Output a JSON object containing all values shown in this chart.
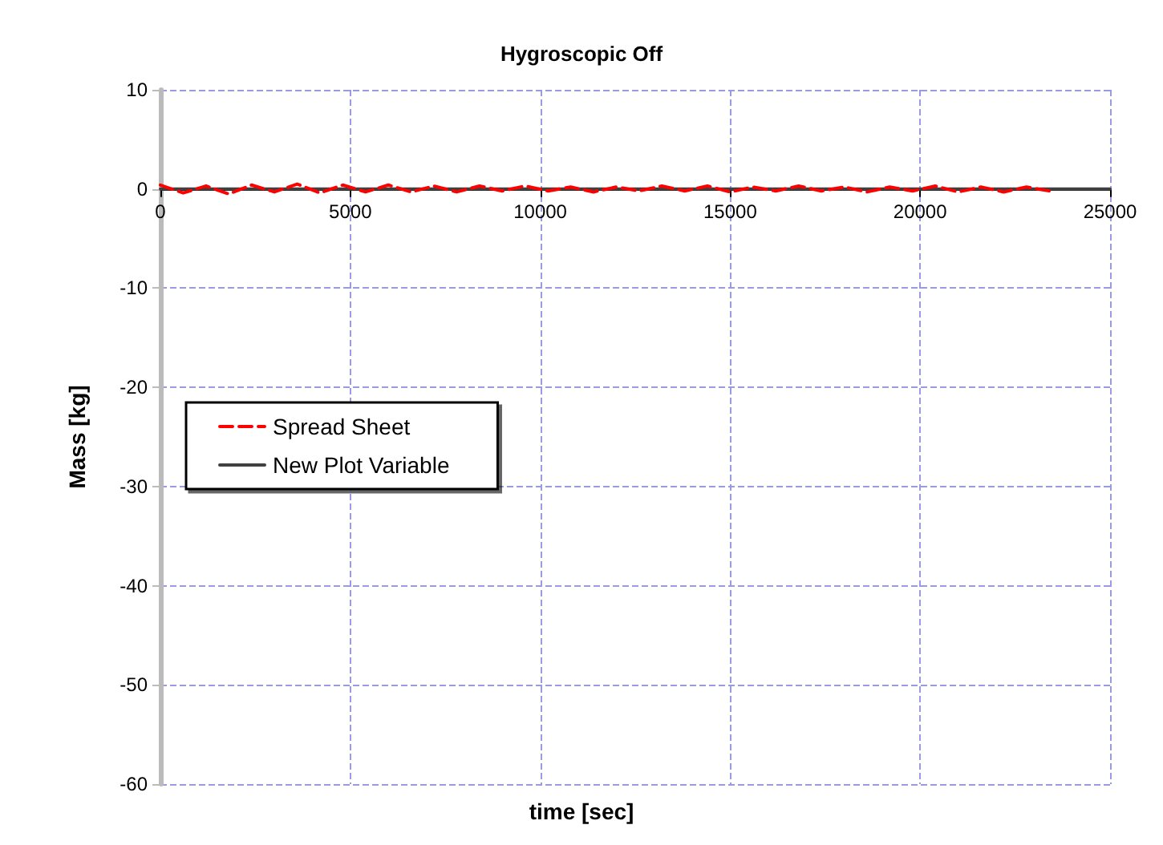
{
  "chart_data": {
    "type": "line",
    "title": "Hygroscopic Off",
    "xlabel": "time [sec]",
    "ylabel": "Mass [kg]",
    "xlim": [
      0,
      25000
    ],
    "xticks": [
      0,
      5000,
      10000,
      15000,
      20000,
      25000
    ],
    "ylim": [
      -60,
      10
    ],
    "yticks": [
      -60,
      -50,
      -40,
      -30,
      -20,
      -10,
      0,
      10
    ],
    "grid": true,
    "legend": "left",
    "marker": "none",
    "series": [
      {
        "name": "Spread Sheet",
        "color": "#ff0000",
        "line_style": "dashed",
        "x": [
          0,
          600,
          1200,
          1800,
          2400,
          3000,
          3600,
          4200,
          4800,
          5400,
          6000,
          6600,
          7200,
          7800,
          8400,
          9000,
          9600,
          10200,
          10800,
          11400,
          12000,
          12600,
          13200,
          13800,
          14400,
          15000,
          15600,
          16200,
          16800,
          17400,
          18000,
          18600,
          19200,
          19800,
          20400,
          21000,
          21600,
          22200,
          22800,
          23400
        ],
        "values": [
          0.4,
          -0.4,
          0.3,
          -0.5,
          0.4,
          -0.3,
          0.5,
          -0.4,
          0.4,
          -0.3,
          0.4,
          -0.3,
          0.3,
          -0.3,
          0.3,
          -0.2,
          0.3,
          -0.2,
          0.2,
          -0.3,
          0.2,
          -0.2,
          0.3,
          -0.2,
          0.3,
          -0.3,
          0.2,
          -0.2,
          0.3,
          -0.2,
          0.2,
          -0.3,
          0.2,
          -0.2,
          0.3,
          -0.3,
          0.2,
          -0.3,
          0.2,
          -0.2
        ]
      },
      {
        "name": "New Plot Variable",
        "color": "#404040",
        "line_style": "solid",
        "x": [
          0,
          25000
        ],
        "values": [
          0,
          0
        ]
      }
    ]
  }
}
